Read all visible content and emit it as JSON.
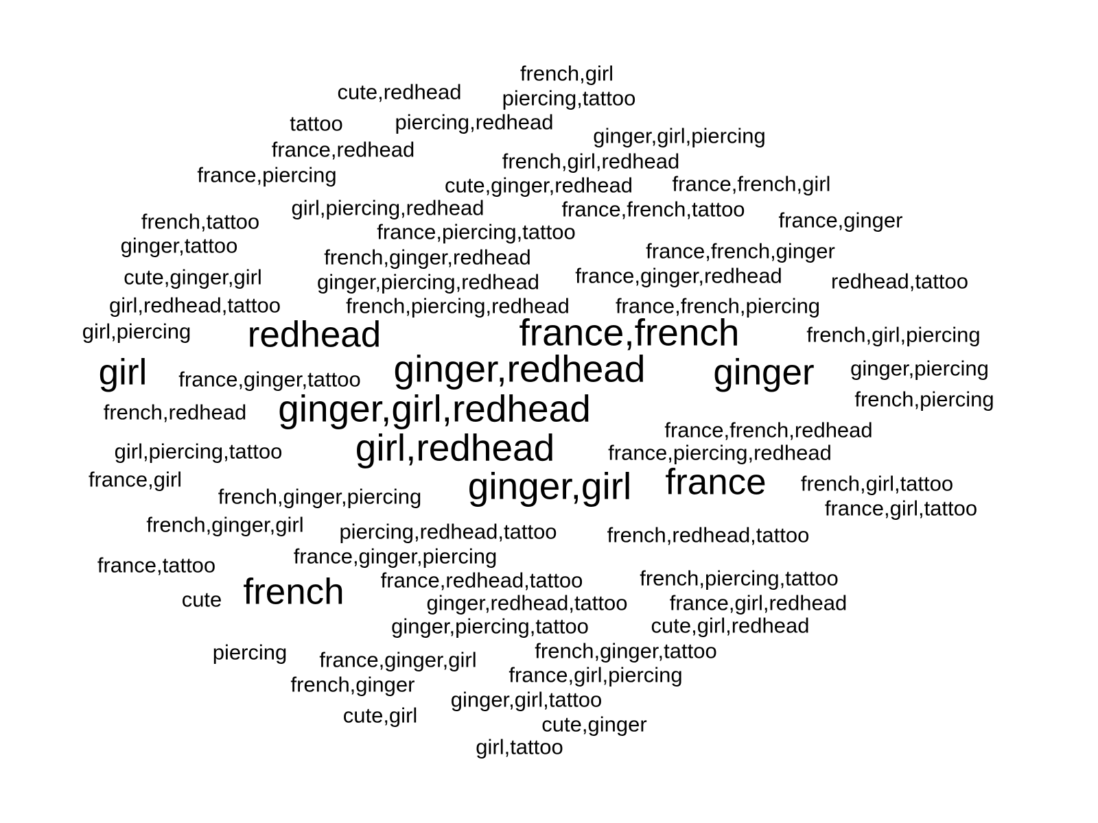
{
  "colors": {
    "background": "#ffffff",
    "text": "#000000"
  },
  "words": [
    {
      "text": "france,french",
      "size": "xl"
    },
    {
      "text": "ginger,redhead",
      "size": "xl"
    },
    {
      "text": "ginger,girl,redhead",
      "size": "xl"
    },
    {
      "text": "girl,redhead",
      "size": "xl"
    },
    {
      "text": "ginger,girl",
      "size": "xl"
    },
    {
      "text": "redhead",
      "size": "lg"
    },
    {
      "text": "ginger",
      "size": "lg"
    },
    {
      "text": "girl",
      "size": "lg"
    },
    {
      "text": "france",
      "size": "lg"
    },
    {
      "text": "french",
      "size": "lg"
    },
    {
      "text": "french,girl",
      "size": "md"
    },
    {
      "text": "cute,redhead",
      "size": "md"
    },
    {
      "text": "piercing,tattoo",
      "size": "md"
    },
    {
      "text": "tattoo",
      "size": "md"
    },
    {
      "text": "piercing,redhead",
      "size": "md"
    },
    {
      "text": "ginger,girl,piercing",
      "size": "md"
    },
    {
      "text": "france,redhead",
      "size": "md"
    },
    {
      "text": "french,girl,redhead",
      "size": "md"
    },
    {
      "text": "france,piercing",
      "size": "md"
    },
    {
      "text": "cute,ginger,redhead",
      "size": "md"
    },
    {
      "text": "france,french,girl",
      "size": "md"
    },
    {
      "text": "girl,piercing,redhead",
      "size": "md"
    },
    {
      "text": "france,french,tattoo",
      "size": "md"
    },
    {
      "text": "french,tattoo",
      "size": "md"
    },
    {
      "text": "france,ginger",
      "size": "md"
    },
    {
      "text": "france,piercing,tattoo",
      "size": "md"
    },
    {
      "text": "ginger,tattoo",
      "size": "md"
    },
    {
      "text": "france,french,ginger",
      "size": "md"
    },
    {
      "text": "french,ginger,redhead",
      "size": "md"
    },
    {
      "text": "cute,ginger,girl",
      "size": "md"
    },
    {
      "text": "france,ginger,redhead",
      "size": "md"
    },
    {
      "text": "ginger,piercing,redhead",
      "size": "md"
    },
    {
      "text": "redhead,tattoo",
      "size": "md"
    },
    {
      "text": "girl,redhead,tattoo",
      "size": "md"
    },
    {
      "text": "french,piercing,redhead",
      "size": "md"
    },
    {
      "text": "france,french,piercing",
      "size": "md"
    },
    {
      "text": "girl,piercing",
      "size": "md"
    },
    {
      "text": "french,girl,piercing",
      "size": "md"
    },
    {
      "text": "france,ginger,tattoo",
      "size": "md"
    },
    {
      "text": "ginger,piercing",
      "size": "md"
    },
    {
      "text": "french,piercing",
      "size": "md"
    },
    {
      "text": "french,redhead",
      "size": "md"
    },
    {
      "text": "france,french,redhead",
      "size": "md"
    },
    {
      "text": "girl,piercing,tattoo",
      "size": "md"
    },
    {
      "text": "france,piercing,redhead",
      "size": "md"
    },
    {
      "text": "france,girl",
      "size": "md"
    },
    {
      "text": "french,girl,tattoo",
      "size": "md"
    },
    {
      "text": "french,ginger,piercing",
      "size": "md"
    },
    {
      "text": "france,girl,tattoo",
      "size": "md"
    },
    {
      "text": "french,ginger,girl",
      "size": "md"
    },
    {
      "text": "piercing,redhead,tattoo",
      "size": "md"
    },
    {
      "text": "french,redhead,tattoo",
      "size": "md"
    },
    {
      "text": "france,tattoo",
      "size": "md"
    },
    {
      "text": "france,ginger,piercing",
      "size": "md"
    },
    {
      "text": "france,redhead,tattoo",
      "size": "md"
    },
    {
      "text": "french,piercing,tattoo",
      "size": "md"
    },
    {
      "text": "cute",
      "size": "md"
    },
    {
      "text": "ginger,redhead,tattoo",
      "size": "md"
    },
    {
      "text": "france,girl,redhead",
      "size": "md"
    },
    {
      "text": "ginger,piercing,tattoo",
      "size": "md"
    },
    {
      "text": "cute,girl,redhead",
      "size": "md"
    },
    {
      "text": "piercing",
      "size": "md"
    },
    {
      "text": "france,ginger,girl",
      "size": "md"
    },
    {
      "text": "french,ginger,tattoo",
      "size": "md"
    },
    {
      "text": "french,ginger",
      "size": "md"
    },
    {
      "text": "france,girl,piercing",
      "size": "md"
    },
    {
      "text": "ginger,girl,tattoo",
      "size": "md"
    },
    {
      "text": "cute,girl",
      "size": "md"
    },
    {
      "text": "cute,ginger",
      "size": "md"
    },
    {
      "text": "girl,tattoo",
      "size": "md"
    }
  ]
}
